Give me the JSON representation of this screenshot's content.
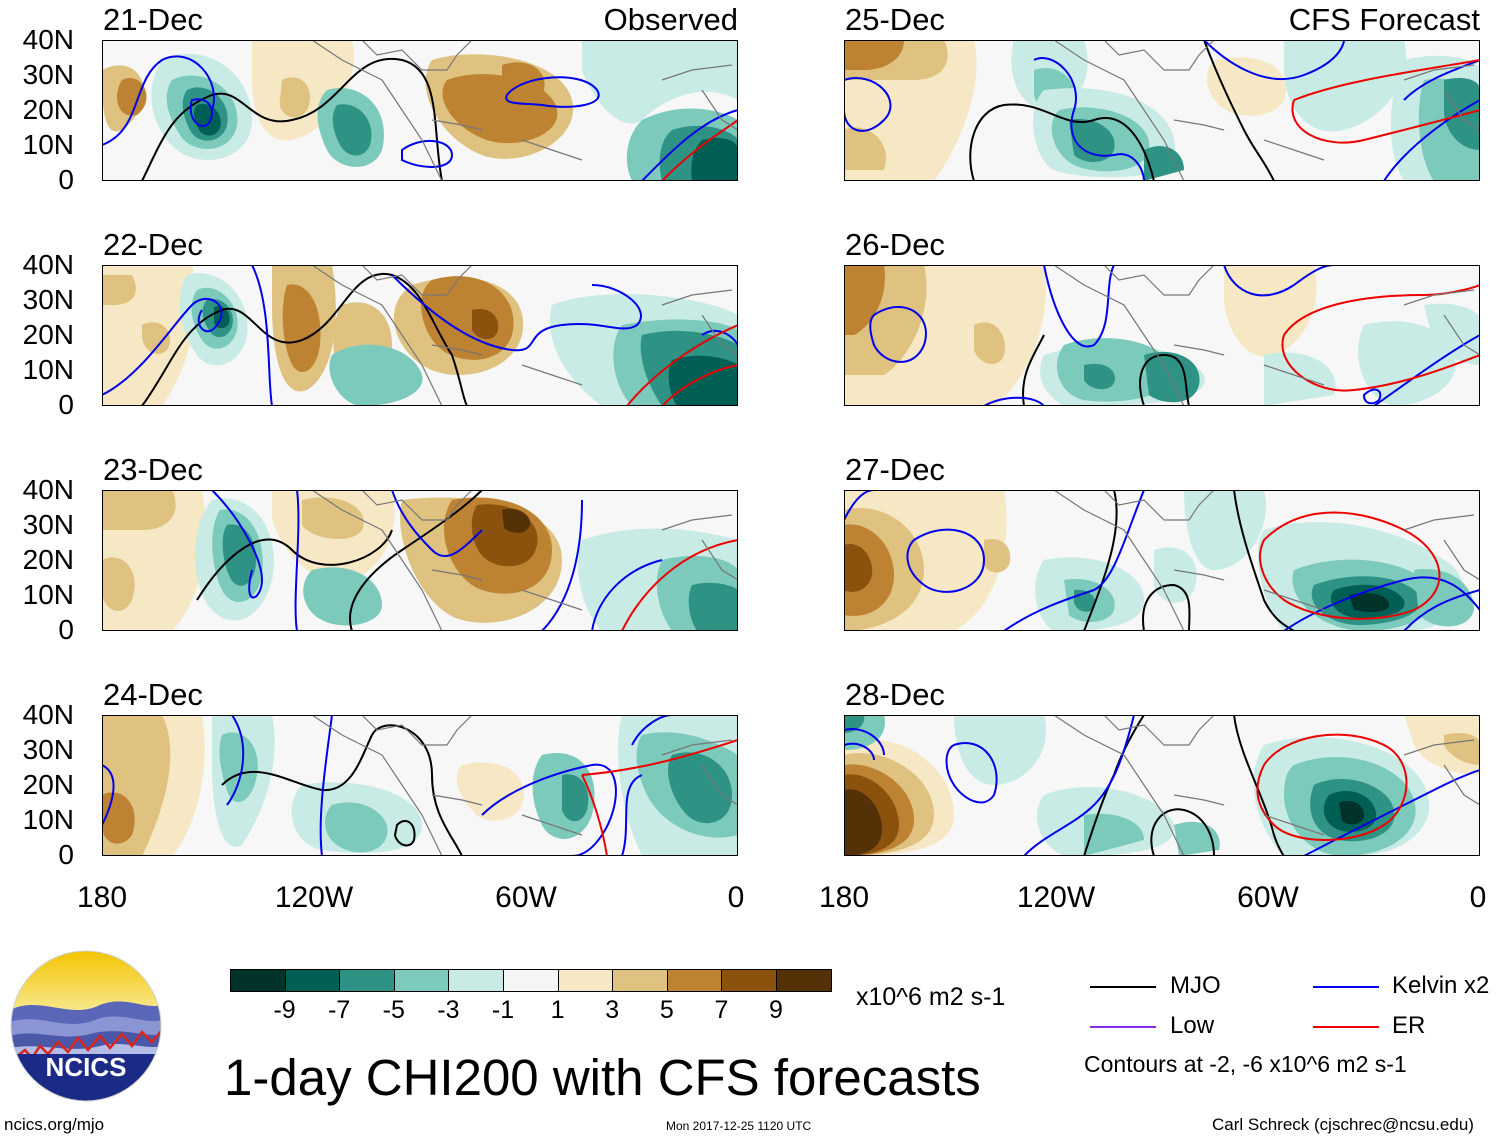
{
  "title": "1-day CHI200 with CFS forecasts",
  "left_header": "Observed",
  "right_header": "CFS Forecast",
  "observed_panels": [
    {
      "date": "21-Dec"
    },
    {
      "date": "22-Dec"
    },
    {
      "date": "23-Dec"
    },
    {
      "date": "24-Dec"
    }
  ],
  "forecast_panels": [
    {
      "date": "25-Dec"
    },
    {
      "date": "26-Dec"
    },
    {
      "date": "27-Dec"
    },
    {
      "date": "28-Dec"
    }
  ],
  "lat_labels": [
    "40N",
    "30N",
    "20N",
    "10N",
    "0"
  ],
  "lon_labels": [
    "180",
    "120W",
    "60W",
    "0"
  ],
  "colorbar": {
    "colors": [
      "#01332b",
      "#005f55",
      "#2e9284",
      "#7ccabc",
      "#c8ebe5",
      "#f5f5f5",
      "#f6e8c4",
      "#dfc27f",
      "#be8233",
      "#8b520e",
      "#553107"
    ],
    "ticks": [
      "-9",
      "-7",
      "-5",
      "-3",
      "-1",
      "1",
      "3",
      "5",
      "7",
      "9"
    ],
    "units": "x10^6 m2 s-1"
  },
  "legend": {
    "items": [
      {
        "label": "MJO",
        "color": "#000000"
      },
      {
        "label": "Kelvin x2",
        "color": "#0000ee"
      },
      {
        "label": "Low",
        "color": "#8a2be2"
      },
      {
        "label": "ER",
        "color": "#ee0000"
      }
    ],
    "note": "Contours at -2, -6 x10^6 m2 s-1"
  },
  "logo_text": "NCICS",
  "footer": {
    "left": "ncics.org/mjo",
    "center": "Mon 2017-12-25 1120 UTC",
    "right": "Carl Schreck (cjschrec@ncsu.edu)"
  }
}
